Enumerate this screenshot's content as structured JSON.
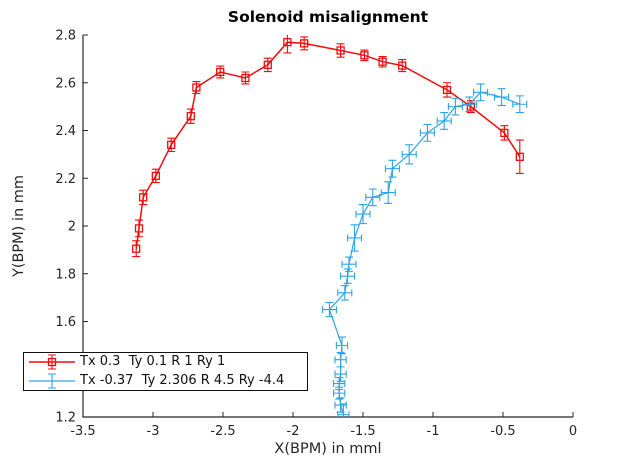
{
  "title": "Solenoid misalignment",
  "xlabel": "X(BPM) in mml",
  "ylabel": "Y(BPM) in mm",
  "legend": {
    "entries": [
      {
        "label": "Tx 0.3  Ty 0.1 R 1 Ry 1"
      },
      {
        "label": "Tx -0.37  Ty 2.306 R 4.5 Ry -4.4"
      }
    ]
  },
  "chart_data": {
    "type": "line",
    "title": "Solenoid misalignment",
    "xlabel": "X(BPM) in mml",
    "ylabel": "Y(BPM) in mm",
    "xlim": [
      -3.5,
      0
    ],
    "ylim": [
      1.2,
      2.8
    ],
    "grid": false,
    "box": false,
    "legend_position": "southwest",
    "axis_color": "#262626",
    "tick_label_color": "#262626",
    "x_tick_values": [
      -3.5,
      -3,
      -2.5,
      -2,
      -1.5,
      -1,
      -0.5,
      0
    ],
    "x_tick_labels": [
      "-3.5",
      "-3",
      "-2.5",
      "-2",
      "-1.5",
      "-1",
      "-0.5",
      "0"
    ],
    "y_tick_values": [
      1.2,
      1.4,
      1.6,
      1.8,
      2,
      2.2,
      2.4,
      2.6,
      2.8
    ],
    "y_tick_labels": [
      "1.2",
      "1.4",
      "1.6",
      "1.8",
      "2",
      "2.2",
      "2.4",
      "2.6",
      "2.8"
    ],
    "series": [
      {
        "name": "Tx 0.3  Ty 0.1 R 1 Ry 1",
        "color": "#f20c0c",
        "marker": "square",
        "marker_size": 7,
        "line_width": 1.5,
        "x": [
          -3.12,
          -3.1,
          -3.07,
          -2.98,
          -2.87,
          -2.73,
          -2.69,
          -2.52,
          -2.34,
          -2.18,
          -2.04,
          -1.92,
          -1.66,
          -1.49,
          -1.36,
          -1.22,
          -0.9,
          -0.73,
          -0.49,
          -0.38
        ],
        "y": [
          1.905,
          1.99,
          2.12,
          2.21,
          2.34,
          2.46,
          2.58,
          2.645,
          2.62,
          2.675,
          2.77,
          2.765,
          2.735,
          2.715,
          2.688,
          2.672,
          2.57,
          2.5,
          2.39,
          2.29
        ],
        "yerr": [
          0.033,
          0.035,
          0.03,
          0.028,
          0.028,
          0.03,
          0.025,
          0.025,
          0.025,
          0.028,
          0.045,
          0.027,
          0.028,
          0.022,
          0.022,
          0.025,
          0.03,
          0.025,
          0.03,
          0.07
        ],
        "xerr": null
      },
      {
        "name": "Tx -0.37  Ty 2.306 R 4.5 Ry -4.4",
        "color": "#2fa3e6",
        "marker": "none",
        "marker_size": 0,
        "line_width": 1.2,
        "x": [
          -1.64,
          -1.66,
          -1.67,
          -1.67,
          -1.66,
          -1.66,
          -1.65,
          -1.74,
          -1.63,
          -1.61,
          -1.6,
          -1.56,
          -1.5,
          -1.43,
          -1.32,
          -1.29,
          -1.17,
          -1.04,
          -0.92,
          -0.84,
          -0.74,
          -0.66,
          -0.51,
          -0.38
        ],
        "y": [
          1.21,
          1.25,
          1.3,
          1.34,
          1.38,
          1.44,
          1.5,
          1.65,
          1.72,
          1.79,
          1.84,
          1.95,
          2.05,
          2.12,
          2.14,
          2.24,
          2.3,
          2.39,
          2.44,
          2.5,
          2.51,
          2.56,
          2.54,
          2.51
        ],
        "yerr": [
          0.045,
          0.03,
          0.025,
          0.025,
          0.03,
          0.03,
          0.035,
          0.03,
          0.03,
          0.03,
          0.03,
          0.055,
          0.04,
          0.035,
          0.045,
          0.035,
          0.04,
          0.035,
          0.035,
          0.035,
          0.03,
          0.035,
          0.035,
          0.035
        ],
        "xerr": [
          0.04,
          0.04,
          0.04,
          0.04,
          0.04,
          0.04,
          0.04,
          0.05,
          0.05,
          0.05,
          0.05,
          0.05,
          0.05,
          0.05,
          0.05,
          0.05,
          0.05,
          0.05,
          0.05,
          0.05,
          0.05,
          0.05,
          0.05,
          0.05
        ]
      }
    ]
  }
}
